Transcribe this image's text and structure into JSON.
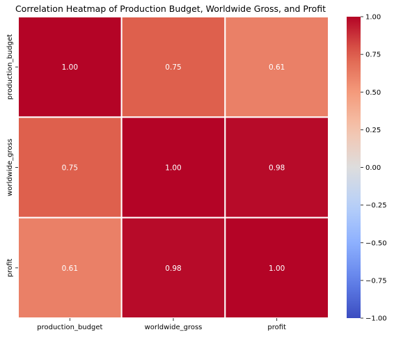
{
  "chart_data": {
    "type": "heatmap",
    "title": "Correlation Heatmap of Production Budget, Worldwide Gross, and Profit",
    "x_categories": [
      "production_budget",
      "worldwide_gross",
      "profit"
    ],
    "y_categories": [
      "production_budget",
      "worldwide_gross",
      "profit"
    ],
    "values": [
      [
        1.0,
        0.75,
        0.61
      ],
      [
        0.75,
        1.0,
        0.98
      ],
      [
        0.61,
        0.98,
        1.0
      ]
    ],
    "annotation_format": "0.00",
    "colormap": "coolwarm",
    "vmin": -1.0,
    "vmax": 1.0,
    "colorbar_ticks": [
      1.0,
      0.75,
      0.5,
      0.25,
      0.0,
      -0.25,
      -0.5,
      -0.75,
      -1.0
    ],
    "colorbar_tick_labels": [
      "1.00",
      "0.75",
      "0.50",
      "0.25",
      "0.00",
      "−0.25",
      "−0.50",
      "−0.75",
      "−1.00"
    ],
    "cell_border_color": "#ffffff",
    "annotation_color": "#ffffff"
  }
}
